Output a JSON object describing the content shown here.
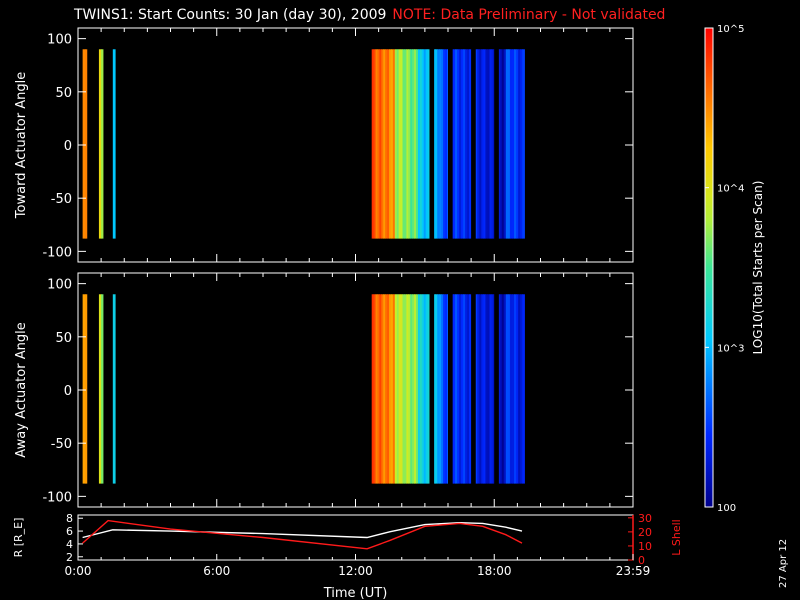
{
  "title": "TWINS1: Start Counts: 30 Jan (day  30), 2009",
  "note": "NOTE: Data Preliminary - Not validated",
  "date_stamp": "27 Apr 12",
  "colors": {
    "background": "#000000",
    "note": "#ff2020",
    "r_line": "#ffffff",
    "lshell_line": "#ff1a1a"
  },
  "chart_data": [
    {
      "type": "heatmap",
      "name": "toward",
      "ylabel": "Toward Actuator Angle",
      "xlim": [
        0,
        24
      ],
      "ylim": [
        -110,
        110
      ],
      "yticks": [
        -100,
        -50,
        0,
        50,
        100
      ],
      "angle_range": [
        -88,
        90
      ],
      "segments": [
        {
          "t": [
            0.2,
            0.4
          ],
          "log_counts": 4.5
        },
        {
          "t": [
            0.9,
            1.1
          ],
          "log_counts": 4.0
        },
        {
          "t": [
            1.5,
            1.6
          ],
          "log_counts": 3.2
        },
        {
          "t": [
            12.7,
            13.7
          ],
          "log_counts": 4.7
        },
        {
          "t": [
            13.7,
            14.7
          ],
          "log_counts": 3.8
        },
        {
          "t": [
            14.7,
            15.7
          ],
          "log_counts": 3.1
        },
        {
          "t": [
            15.7,
            17.0
          ],
          "log_counts": 2.6
        },
        {
          "t": [
            17.0,
            18.5
          ],
          "log_counts": 2.4
        },
        {
          "t": [
            18.5,
            19.3
          ],
          "log_counts": 2.6
        }
      ],
      "data_gaps": [
        [
          0.4,
          0.9
        ],
        [
          1.1,
          1.5
        ],
        [
          15.2,
          15.4
        ],
        [
          16.0,
          16.2
        ],
        [
          17.0,
          17.2
        ],
        [
          18.0,
          18.2
        ]
      ]
    },
    {
      "type": "heatmap",
      "name": "away",
      "ylabel": "Away Actuator Angle",
      "xlim": [
        0,
        24
      ],
      "ylim": [
        -110,
        110
      ],
      "yticks": [
        -100,
        -50,
        0,
        50,
        100
      ],
      "angle_range": [
        -88,
        90
      ],
      "segments": [
        {
          "t": [
            0.2,
            0.4
          ],
          "log_counts": 4.4
        },
        {
          "t": [
            0.9,
            1.1
          ],
          "log_counts": 3.9
        },
        {
          "t": [
            1.5,
            1.6
          ],
          "log_counts": 3.3
        },
        {
          "t": [
            12.7,
            13.7
          ],
          "log_counts": 4.7
        },
        {
          "t": [
            13.7,
            14.7
          ],
          "log_counts": 3.9
        },
        {
          "t": [
            14.7,
            15.7
          ],
          "log_counts": 3.2
        },
        {
          "t": [
            15.7,
            17.0
          ],
          "log_counts": 2.6
        },
        {
          "t": [
            17.0,
            18.5
          ],
          "log_counts": 2.4
        },
        {
          "t": [
            18.5,
            19.3
          ],
          "log_counts": 2.5
        }
      ],
      "data_gaps": [
        [
          0.4,
          0.9
        ],
        [
          1.1,
          1.5
        ],
        [
          15.2,
          15.4
        ],
        [
          16.0,
          16.2
        ],
        [
          17.0,
          17.2
        ],
        [
          18.0,
          18.2
        ]
      ]
    },
    {
      "type": "line",
      "name": "orbit",
      "xlabel": "Time (UT)",
      "xticks": [
        "0:00",
        "6:00",
        "12:00",
        "18:00",
        "23:59"
      ],
      "xlim": [
        0,
        24
      ],
      "ylabel_left": "R [R_E]",
      "ylabel_right": "L Shell",
      "ylim_left": [
        1.5,
        8.5
      ],
      "yticks_left": [
        2,
        4,
        6,
        8
      ],
      "ylim_right": [
        0,
        32
      ],
      "yticks_right": [
        0,
        10,
        20,
        30
      ],
      "series": [
        {
          "axis": "left",
          "x": [
            0.2,
            1.5,
            4,
            8,
            12.5,
            13.5,
            15,
            16.5,
            17.5,
            18.5,
            19.2
          ],
          "y": [
            5.0,
            6.2,
            6.0,
            5.6,
            5.0,
            5.9,
            7.0,
            7.3,
            7.2,
            6.6,
            6.0
          ]
        },
        {
          "axis": "right",
          "x": [
            0.2,
            1.3,
            4,
            8,
            12.5,
            13.5,
            15,
            16.5,
            17.5,
            18.5,
            19.2
          ],
          "y": [
            12,
            28,
            22,
            16,
            8,
            14,
            24,
            26,
            24,
            18,
            12
          ]
        }
      ]
    }
  ],
  "colorbar": {
    "label": "LOG10(Total Starts per Scan)",
    "range_log": [
      2,
      5
    ],
    "ticks": [
      {
        "log": 5,
        "label": "10^5"
      },
      {
        "log": 4,
        "label": "10^4"
      },
      {
        "log": 3,
        "label": "10^3"
      },
      {
        "log": 2,
        "label": "100"
      }
    ]
  }
}
